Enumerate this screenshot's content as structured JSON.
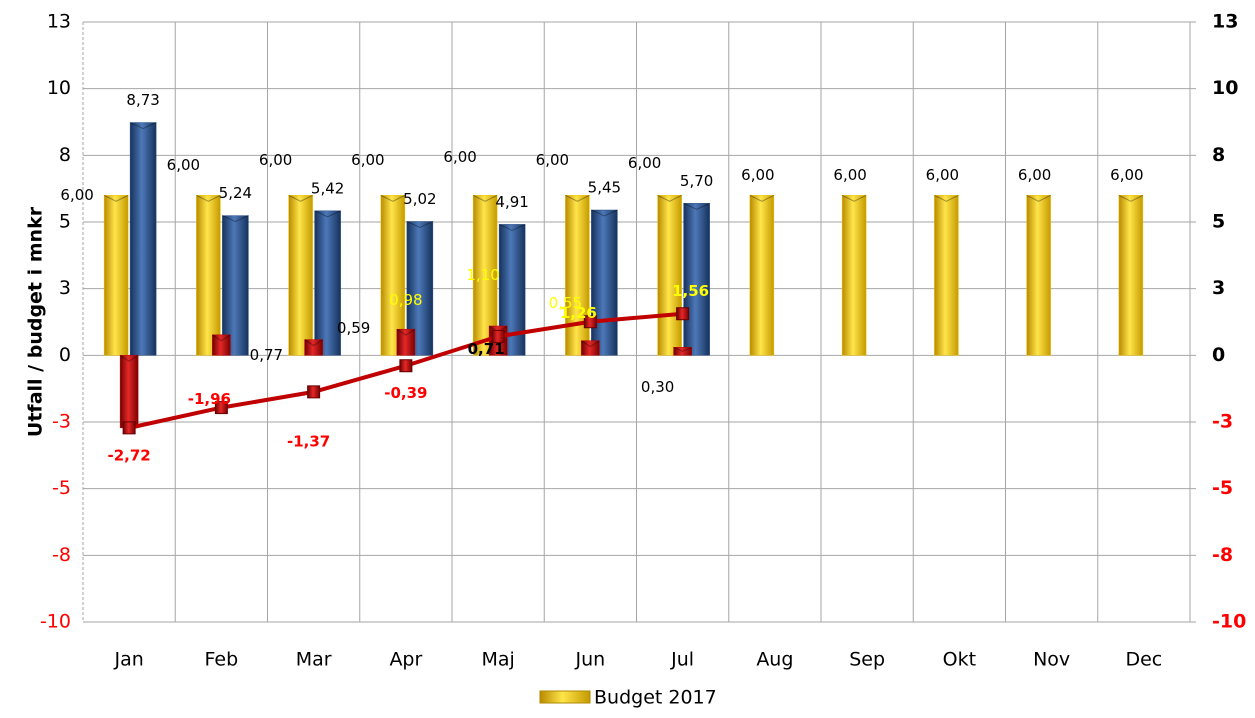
{
  "chart_data": {
    "type": "bar",
    "y_label": "Utfall / budget i mnkr",
    "categories": [
      "Jan",
      "Feb",
      "Mar",
      "Apr",
      "Maj",
      "Jun",
      "Jul",
      "Aug",
      "Sep",
      "Okt",
      "Nov",
      "Dec"
    ],
    "ylim": [
      -10,
      12.5
    ],
    "yticks": [
      {
        "value": 12.5,
        "label": "13"
      },
      10,
      {
        "value": 7.5,
        "label": "8"
      },
      5,
      {
        "value": 2.5,
        "label": "3"
      },
      0,
      {
        "value": -2.5,
        "label": "-3"
      },
      -5,
      {
        "value": -7.5,
        "label": "-8"
      },
      -10
    ],
    "y2lim": [
      -10,
      12.5
    ],
    "y2ticks": [
      {
        "value": 12.5,
        "label": "13"
      },
      10,
      {
        "value": 7.5,
        "label": "8"
      },
      5,
      {
        "value": 2.5,
        "label": "3"
      },
      0,
      {
        "value": -2.5,
        "label": "-3"
      },
      -5,
      {
        "value": -7.5,
        "label": "-8"
      },
      -10
    ],
    "grid": true,
    "legend": "bottom",
    "series": [
      {
        "name": "Budget 2017",
        "color": "#f2c200",
        "kind": "bar",
        "values": [
          6,
          6,
          6,
          6,
          6,
          6,
          6,
          6,
          6,
          6,
          6,
          6
        ],
        "value_labels": [
          "6,00",
          "6,00",
          "6,00",
          "6,00",
          "6,00",
          "6,00",
          "6,00",
          "6,00",
          "6,00",
          "6,00",
          "6,00",
          "6,00"
        ]
      },
      {
        "color": "#2a4f85",
        "kind": "bar",
        "values": [
          8.73,
          5.24,
          5.42,
          5.02,
          4.91,
          5.45,
          5.7,
          null,
          null,
          null,
          null,
          null
        ],
        "value_labels": [
          "8,73",
          "5,24",
          "5,42",
          "5,02",
          "4,91",
          "5,45",
          "5,70",
          null,
          null,
          null,
          null,
          null
        ]
      },
      {
        "color": "#c00000",
        "kind": "small-bar",
        "values": [
          -2.72,
          0.77,
          0.59,
          0.98,
          1.1,
          0.55,
          0.3,
          null,
          null,
          null,
          null,
          null
        ],
        "value_labels": [
          null,
          "0,77",
          "0,59",
          "0,98",
          "1,10",
          "0,55",
          "0,30",
          null,
          null,
          null,
          null,
          null
        ]
      },
      {
        "color": "#c00000",
        "kind": "line",
        "axis": "y2",
        "values": [
          -2.72,
          -1.96,
          -1.37,
          -0.39,
          0.71,
          1.26,
          1.56,
          null,
          null,
          null,
          null,
          null
        ],
        "value_labels": [
          "-2,72",
          "-1,96",
          "-1,37",
          "-0,39",
          "0,71",
          "1,26",
          "1,56",
          null,
          null,
          null,
          null,
          null
        ]
      }
    ]
  }
}
